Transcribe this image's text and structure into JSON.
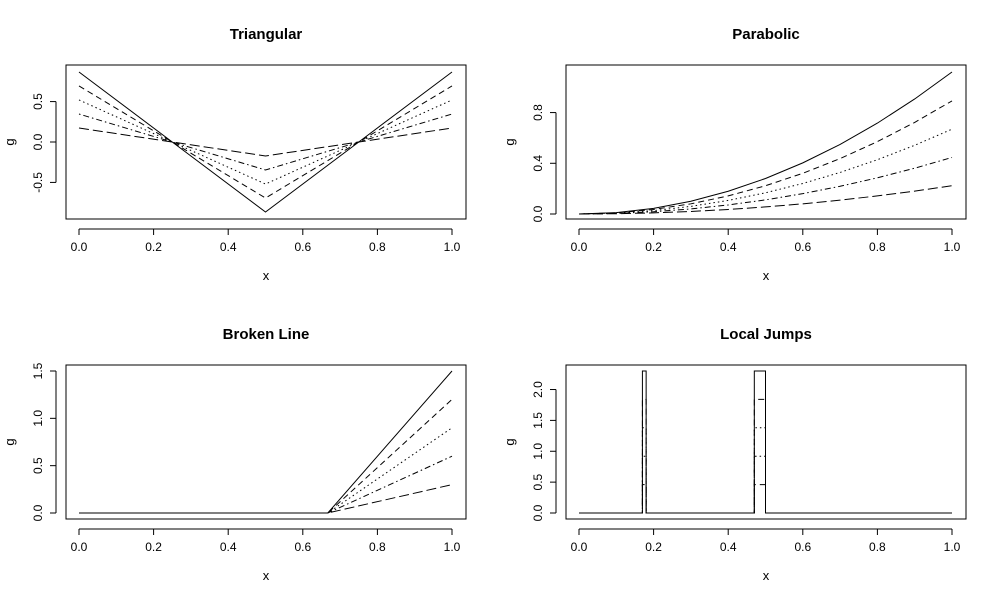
{
  "chart_data": [
    {
      "type": "line",
      "title": "Triangular",
      "xlabel": "x",
      "ylabel": "g",
      "xlim": [
        0,
        1
      ],
      "ylim": [
        -0.9,
        0.9
      ],
      "xticks": [
        0,
        0.2,
        0.4,
        0.6,
        0.8,
        1
      ],
      "xtick_labels": [
        "0.0",
        "0.2",
        "0.4",
        "0.6",
        "0.8",
        "1.0"
      ],
      "yticks": [
        -0.5,
        0,
        0.5
      ],
      "ytick_labels": [
        "-0.5",
        "0.0",
        "0.5"
      ],
      "series": [
        {
          "dash": "solid",
          "x": [
            0,
            0.25,
            0.5,
            0.75,
            1
          ],
          "y": [
            0.866,
            0,
            -0.866,
            0,
            0.866
          ]
        },
        {
          "dash": "dashed",
          "x": [
            0,
            0.25,
            0.5,
            0.75,
            1
          ],
          "y": [
            0.693,
            0,
            -0.693,
            0,
            0.693
          ]
        },
        {
          "dash": "dotted",
          "x": [
            0,
            0.25,
            0.5,
            0.75,
            1
          ],
          "y": [
            0.52,
            0,
            -0.52,
            0,
            0.52
          ]
        },
        {
          "dash": "dotdash",
          "x": [
            0,
            0.25,
            0.5,
            0.75,
            1
          ],
          "y": [
            0.346,
            0,
            -0.346,
            0,
            0.346
          ]
        },
        {
          "dash": "longdash",
          "x": [
            0,
            0.25,
            0.5,
            0.75,
            1
          ],
          "y": [
            0.173,
            0,
            -0.173,
            0,
            0.173
          ]
        }
      ]
    },
    {
      "type": "line",
      "title": "Parabolic",
      "xlabel": "x",
      "ylabel": "g",
      "xlim": [
        0,
        1
      ],
      "ylim": [
        0,
        1.12
      ],
      "xticks": [
        0,
        0.2,
        0.4,
        0.6,
        0.8,
        1
      ],
      "xtick_labels": [
        "0.0",
        "0.2",
        "0.4",
        "0.6",
        "0.8",
        "1.0"
      ],
      "yticks": [
        0,
        0.4,
        0.8
      ],
      "ytick_labels": [
        "0.0",
        "0.4",
        "0.8"
      ],
      "series": [
        {
          "dash": "solid",
          "x": [
            0,
            0.1,
            0.2,
            0.3,
            0.4,
            0.5,
            0.6,
            0.7,
            0.8,
            0.9,
            1
          ],
          "y": [
            0,
            0.0112,
            0.0448,
            0.1008,
            0.1792,
            0.28,
            0.4032,
            0.5488,
            0.7168,
            0.9072,
            1.12
          ]
        },
        {
          "dash": "dashed",
          "x": [
            0,
            0.1,
            0.2,
            0.3,
            0.4,
            0.5,
            0.6,
            0.7,
            0.8,
            0.9,
            1
          ],
          "y": [
            0,
            0.0089,
            0.0357,
            0.0803,
            0.1427,
            0.223,
            0.3211,
            0.4371,
            0.5709,
            0.7225,
            0.892
          ]
        },
        {
          "dash": "dotted",
          "x": [
            0,
            0.1,
            0.2,
            0.3,
            0.4,
            0.5,
            0.6,
            0.7,
            0.8,
            0.9,
            1
          ],
          "y": [
            0,
            0.0067,
            0.0268,
            0.0602,
            0.107,
            0.1672,
            0.2408,
            0.3278,
            0.4282,
            0.5419,
            0.669
          ]
        },
        {
          "dash": "dotdash",
          "x": [
            0,
            0.1,
            0.2,
            0.3,
            0.4,
            0.5,
            0.6,
            0.7,
            0.8,
            0.9,
            1
          ],
          "y": [
            0,
            0.0045,
            0.0178,
            0.0401,
            0.0714,
            0.1115,
            0.1606,
            0.2185,
            0.2854,
            0.3613,
            0.446
          ]
        },
        {
          "dash": "longdash",
          "x": [
            0,
            0.1,
            0.2,
            0.3,
            0.4,
            0.5,
            0.6,
            0.7,
            0.8,
            0.9,
            1
          ],
          "y": [
            0,
            0.0022,
            0.0089,
            0.0201,
            0.0357,
            0.0558,
            0.0803,
            0.1093,
            0.1427,
            0.1806,
            0.223
          ]
        }
      ]
    },
    {
      "type": "line",
      "title": "Broken Line",
      "xlabel": "x",
      "ylabel": "g",
      "xlim": [
        0,
        1
      ],
      "ylim": [
        0,
        1.5
      ],
      "xticks": [
        0,
        0.2,
        0.4,
        0.6,
        0.8,
        1
      ],
      "xtick_labels": [
        "0.0",
        "0.2",
        "0.4",
        "0.6",
        "0.8",
        "1.0"
      ],
      "yticks": [
        0,
        0.5,
        1,
        1.5
      ],
      "ytick_labels": [
        "0.0",
        "0.5",
        "1.0",
        "1.5"
      ],
      "series": [
        {
          "dash": "solid",
          "x": [
            0,
            0.667,
            1
          ],
          "y": [
            0,
            0,
            1.5
          ]
        },
        {
          "dash": "dashed",
          "x": [
            0,
            0.667,
            1
          ],
          "y": [
            0,
            0,
            1.2
          ]
        },
        {
          "dash": "dotted",
          "x": [
            0,
            0.667,
            1
          ],
          "y": [
            0,
            0,
            0.9
          ]
        },
        {
          "dash": "dotdash",
          "x": [
            0,
            0.667,
            1
          ],
          "y": [
            0,
            0,
            0.6
          ]
        },
        {
          "dash": "longdash",
          "x": [
            0,
            0.667,
            1
          ],
          "y": [
            0,
            0,
            0.3
          ]
        }
      ]
    },
    {
      "type": "line",
      "title": "Local Jumps",
      "xlabel": "x",
      "ylabel": "g",
      "xlim": [
        0,
        1
      ],
      "ylim": [
        0,
        2.3
      ],
      "xticks": [
        0,
        0.2,
        0.4,
        0.6,
        0.8,
        1
      ],
      "xtick_labels": [
        "0.0",
        "0.2",
        "0.4",
        "0.6",
        "0.8",
        "1.0"
      ],
      "yticks": [
        0,
        0.5,
        1,
        1.5,
        2
      ],
      "ytick_labels": [
        "0.0",
        "0.5",
        "1.0",
        "1.5",
        "2.0"
      ],
      "series": [
        {
          "dash": "solid",
          "x": [
            0,
            0.17,
            0.17,
            0.18,
            0.18,
            0.47,
            0.47,
            0.5,
            0.5,
            1
          ],
          "y": [
            0,
            0,
            2.3,
            2.3,
            0,
            0,
            2.3,
            2.3,
            0,
            0
          ]
        },
        {
          "dash": "dashed",
          "x": [
            0,
            0.17,
            0.17,
            0.18,
            0.18,
            0.47,
            0.47,
            0.5,
            0.5,
            1
          ],
          "y": [
            0,
            0,
            1.84,
            1.84,
            0,
            0,
            1.84,
            1.84,
            0,
            0
          ]
        },
        {
          "dash": "dotted",
          "x": [
            0,
            0.17,
            0.17,
            0.18,
            0.18,
            0.47,
            0.47,
            0.5,
            0.5,
            1
          ],
          "y": [
            0,
            0,
            1.38,
            1.38,
            0,
            0,
            1.38,
            1.38,
            0,
            0
          ]
        },
        {
          "dash": "dotdash",
          "x": [
            0,
            0.17,
            0.17,
            0.18,
            0.18,
            0.47,
            0.47,
            0.5,
            0.5,
            1
          ],
          "y": [
            0,
            0,
            0.92,
            0.92,
            0,
            0,
            0.92,
            0.92,
            0,
            0
          ]
        },
        {
          "dash": "longdash",
          "x": [
            0,
            0.17,
            0.17,
            0.18,
            0.18,
            0.47,
            0.47,
            0.5,
            0.5,
            1
          ],
          "y": [
            0,
            0,
            0.46,
            0.46,
            0,
            0,
            0.46,
            0.46,
            0,
            0
          ]
        }
      ]
    }
  ]
}
